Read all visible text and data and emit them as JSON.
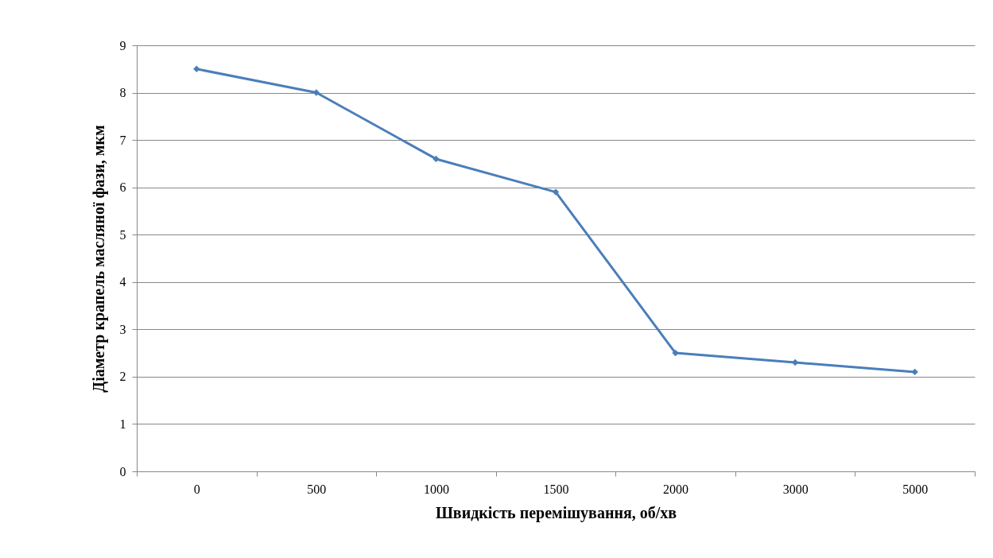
{
  "chart_data": {
    "type": "line",
    "xlabel": "Швидкість перемішування, об/хв",
    "ylabel": "Діаметр крапель масляної фази, мкм",
    "categories": [
      "0",
      "500",
      "1000",
      "1500",
      "2000",
      "3000",
      "5000"
    ],
    "series": [
      {
        "color": "#4a7ebb",
        "values": [
          8.5,
          8.0,
          6.6,
          5.9,
          2.5,
          2.3,
          2.1
        ]
      }
    ],
    "ylim": [
      0,
      9
    ],
    "yticks": [
      0,
      1,
      2,
      3,
      4,
      5,
      6,
      7,
      8,
      9
    ],
    "grid": "y",
    "marker": "diamond",
    "line_style": "solid"
  }
}
